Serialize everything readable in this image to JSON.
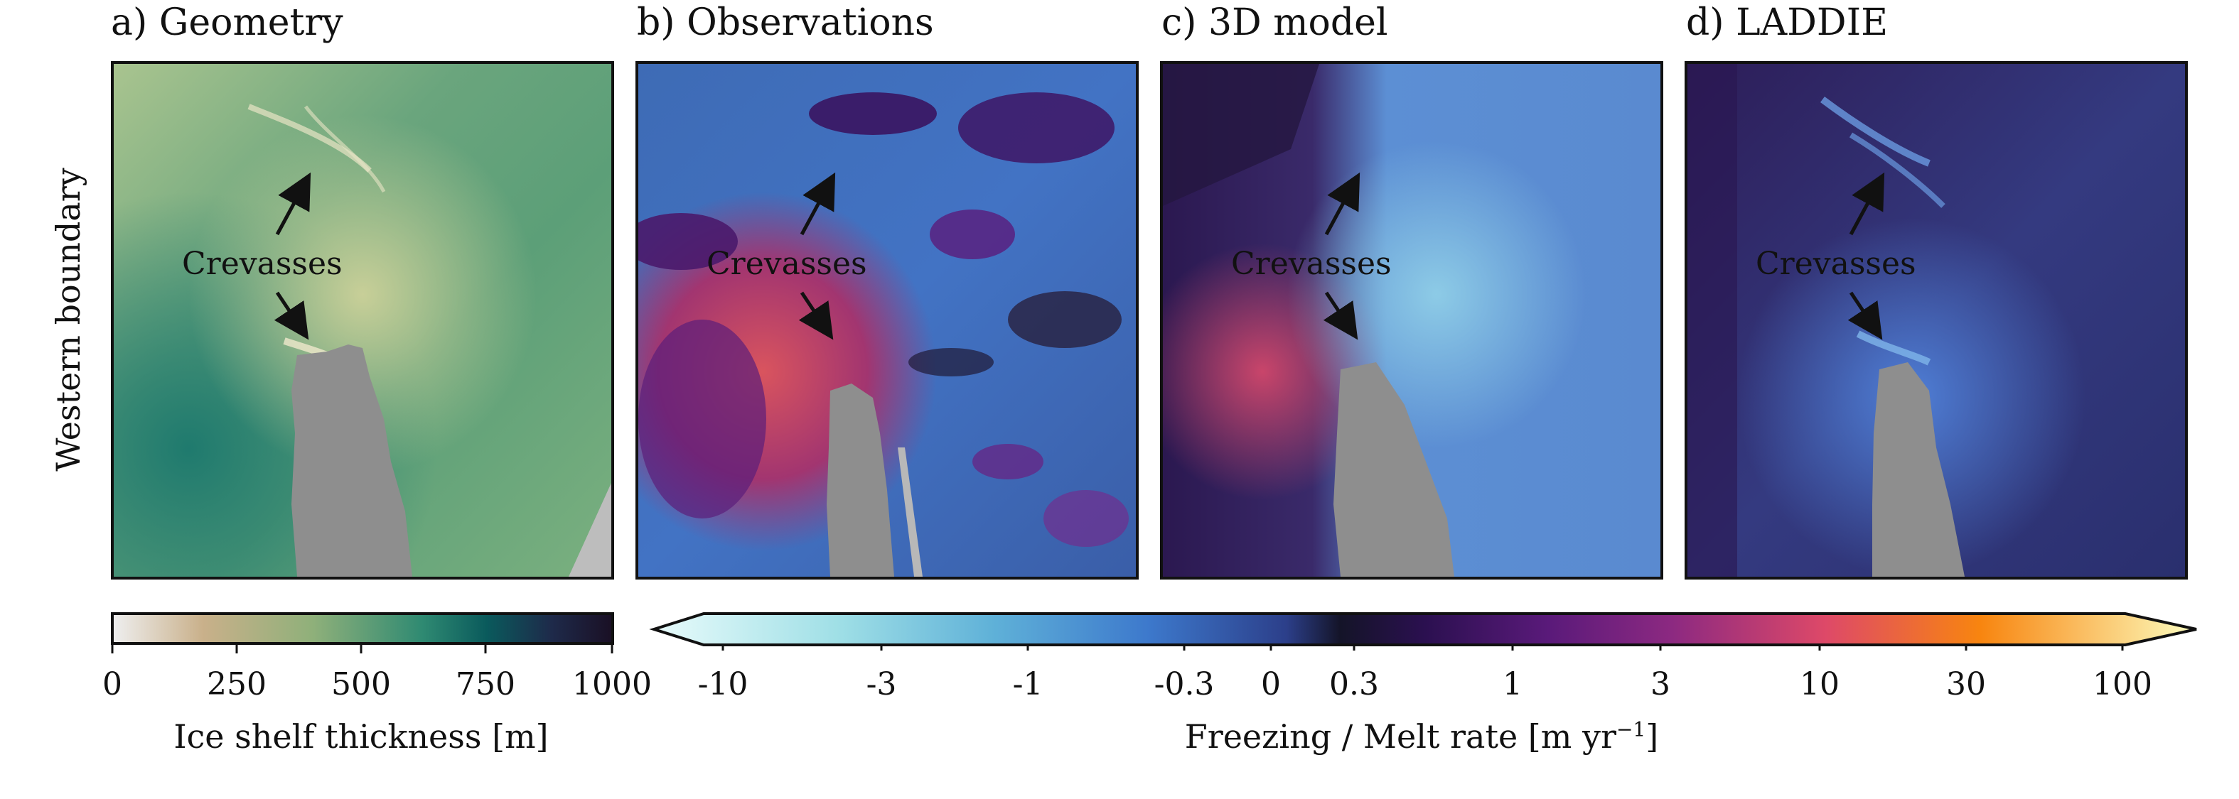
{
  "panels": [
    {
      "id": "a",
      "title": "a) Geometry"
    },
    {
      "id": "b",
      "title": "b) Observations"
    },
    {
      "id": "c",
      "title": "c) 3D model"
    },
    {
      "id": "d",
      "title": "d) LADDIE"
    }
  ],
  "y_axis_label": "Western boundary",
  "annotation": {
    "label": "Crevasses"
  },
  "colorbar_thickness": {
    "label": "Ice shelf thickness [m]",
    "ticks": [
      "0",
      "250",
      "500",
      "750",
      "1000"
    ],
    "colors": [
      "#eeeeee",
      "#c9b08a",
      "#8fb07a",
      "#2f8a72",
      "#0a5a5c",
      "#1e2a4a",
      "#1a1025"
    ]
  },
  "colorbar_melt": {
    "label_main": "Freezing / Melt rate [m yr",
    "label_sup": "−1",
    "label_end": "]",
    "ticks": [
      "-10",
      "-3",
      "-1",
      "-0.3",
      "0",
      "0.3",
      "1",
      "3",
      "10",
      "30",
      "100"
    ],
    "colors": [
      "#e8fbfb",
      "#6fc7d6",
      "#3f7fd0",
      "#2c3f8a",
      "#141428",
      "#3b0f6f",
      "#8c2981",
      "#de4968",
      "#f8850f",
      "#fcfdbf"
    ]
  }
}
